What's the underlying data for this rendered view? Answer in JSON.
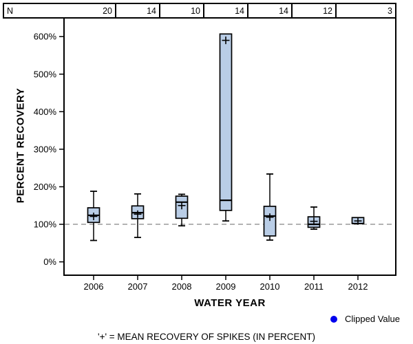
{
  "header": {
    "n_label": "N"
  },
  "legend": {
    "label": "Clipped Value",
    "dot_color": "#0000ee"
  },
  "footnote": "'+' = MEAN RECOVERY OF SPIKES (IN PERCENT)",
  "colors": {
    "background": "#ffffff",
    "box_fill": "#b9cde6",
    "box_stroke": "#000000",
    "axis": "#000000",
    "reference_dashed": "#999999"
  },
  "chart_data": {
    "type": "boxplot",
    "x_title": "WATER YEAR",
    "y_title": "PERCENT RECOVERY",
    "categories": [
      "2006",
      "2007",
      "2008",
      "2009",
      "2010",
      "2011",
      "2012"
    ],
    "n_values": [
      "20",
      "14",
      "10",
      "14",
      "14",
      "12",
      "3"
    ],
    "y_ticks": [
      0,
      100,
      200,
      300,
      400,
      500,
      600
    ],
    "y_tick_suffix": "%",
    "ylim": [
      0,
      650
    ],
    "reference_line": 100,
    "grid": false,
    "legend_position": "bottom-right",
    "series": [
      {
        "year": "2006",
        "n": 20,
        "whisker_low": 57,
        "q1": 105,
        "median": 124,
        "mean": 121,
        "q3": 144,
        "whisker_high": 188
      },
      {
        "year": "2007",
        "n": 14,
        "whisker_low": 65,
        "q1": 115,
        "median": 131,
        "mean": 127,
        "q3": 149,
        "whisker_high": 181
      },
      {
        "year": "2008",
        "n": 10,
        "whisker_low": 96,
        "q1": 116,
        "median": 159,
        "mean": 150,
        "q3": 175,
        "whisker_high": 180
      },
      {
        "year": "2009",
        "n": 14,
        "whisker_low": 109,
        "q1": 137,
        "median": 164,
        "mean": 590,
        "q3": 607,
        "whisker_high": null
      },
      {
        "year": "2010",
        "n": 14,
        "whisker_low": 58,
        "q1": 69,
        "median": 122,
        "mean": 119,
        "q3": 148,
        "whisker_high": 234
      },
      {
        "year": "2011",
        "n": 12,
        "whisker_low": 87,
        "q1": 92,
        "median": 100,
        "mean": 108,
        "q3": 120,
        "whisker_high": 146
      },
      {
        "year": "2012",
        "n": 3,
        "whisker_low": null,
        "q1": 102,
        "median": 102,
        "mean": 109,
        "q3": 118,
        "whisker_high": null
      }
    ]
  }
}
